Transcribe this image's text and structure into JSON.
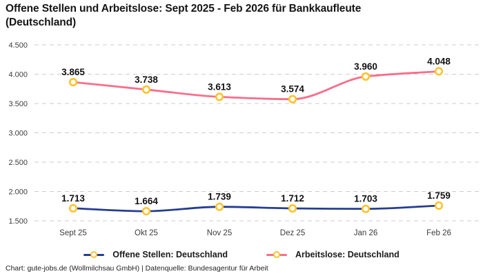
{
  "title": "Offene Stellen und Arbeitslose: Sept 2025 - Feb 2026 für Bankkaufleute (Deutschland)",
  "footer": "Chart: gute-jobs.de (Wollmilchsau GmbH) | Datenquelle: Bundesagentur für Arbeit",
  "colors": {
    "background": "#ffffff",
    "grid": "#cccccc",
    "axis_text": "#3c3c3c",
    "point_label_text": "#111111",
    "marker_fill": "#ffffff",
    "marker_stroke": "#fcc32d",
    "series_open_positions": "#253d90",
    "series_unemployed": "#f76e8a"
  },
  "chart_data": {
    "type": "line",
    "title": "Offene Stellen und Arbeitslose: Sept 2025 - Feb 2026 für Bankkaufleute (Deutschland)",
    "categories": [
      "Sept 25",
      "Okt 25",
      "Nov 25",
      "Dez 25",
      "Jan 26",
      "Feb 26"
    ],
    "series": [
      {
        "name": "Offene Stellen: Deutschland",
        "color": "#253d90",
        "values": [
          1713,
          1664,
          1739,
          1712,
          1703,
          1759
        ],
        "point_labels": [
          "1.713",
          "1.664",
          "1.739",
          "1.712",
          "1.703",
          "1.759"
        ]
      },
      {
        "name": "Arbeitslose: Deutschland",
        "color": "#f76e8a",
        "values": [
          3865,
          3738,
          3613,
          3574,
          3960,
          4048
        ],
        "point_labels": [
          "3.865",
          "3.738",
          "3.613",
          "3.574",
          "3.960",
          "4.048"
        ]
      }
    ],
    "y_ticks": [
      {
        "value": 4500,
        "label": "4.500"
      },
      {
        "value": 4000,
        "label": "4.000"
      },
      {
        "value": 3500,
        "label": "3.500"
      },
      {
        "value": 3000,
        "label": "3.000"
      },
      {
        "value": 2500,
        "label": "2.500"
      },
      {
        "value": 2000,
        "label": "2.000"
      },
      {
        "value": 1500,
        "label": "1.500"
      }
    ],
    "ylim": [
      1500,
      4500
    ],
    "grid": true,
    "curve": "smooth-monotone",
    "legend_position": "bottom",
    "marker": {
      "shape": "circle",
      "fill": "#ffffff",
      "stroke": "#fcc32d"
    }
  }
}
